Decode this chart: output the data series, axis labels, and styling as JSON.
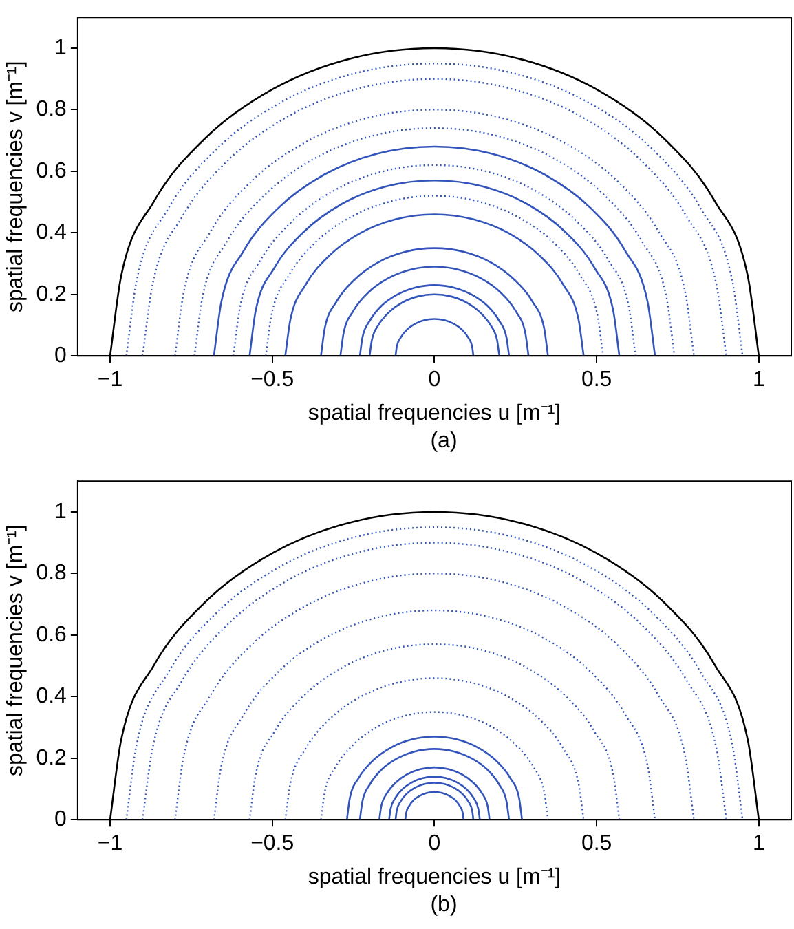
{
  "chart_data": [
    {
      "type": "line",
      "xlabel": "spatial frequencies u [m⁻¹]",
      "ylabel": "spatial frequencies v [m⁻¹]",
      "annotations": [
        "(a)"
      ],
      "xlim": [
        -1.1,
        1.1
      ],
      "ylim": [
        0,
        1.1
      ],
      "xticks": [
        -1,
        -0.5,
        0,
        0.5,
        1
      ],
      "yticks": [
        0,
        0.2,
        0.4,
        0.6,
        0.8,
        1
      ],
      "grid": false,
      "legend": false,
      "series": [
        {
          "color": "#000000",
          "line_style": "solid",
          "x": [
            -1,
            -0.966,
            -0.866,
            -0.707,
            -0.5,
            -0.259,
            0,
            0.259,
            0.5,
            0.707,
            0.866,
            0.966,
            1
          ],
          "values": [
            0,
            0.259,
            0.5,
            0.707,
            0.866,
            0.966,
            1,
            0.966,
            0.866,
            0.707,
            0.5,
            0.259,
            0
          ]
        },
        {
          "color": "#3355bb",
          "line_style": "solid",
          "x": [
            -0.12,
            -0.116,
            -0.104,
            -0.085,
            -0.06,
            -0.031,
            0,
            0.031,
            0.06,
            0.085,
            0.104,
            0.116,
            0.12
          ],
          "values": [
            0,
            0.031,
            0.06,
            0.085,
            0.104,
            0.116,
            0.12,
            0.116,
            0.104,
            0.085,
            0.06,
            0.031,
            0
          ]
        },
        {
          "color": "#3355bb",
          "line_style": "solid",
          "x": [
            -0.2,
            -0.193,
            -0.173,
            -0.141,
            -0.1,
            -0.052,
            0,
            0.052,
            0.1,
            0.141,
            0.173,
            0.193,
            0.2
          ],
          "values": [
            0,
            0.052,
            0.1,
            0.141,
            0.173,
            0.193,
            0.2,
            0.193,
            0.173,
            0.141,
            0.1,
            0.052,
            0
          ]
        },
        {
          "color": "#3355bb",
          "line_style": "solid",
          "x": [
            -0.23,
            -0.222,
            -0.199,
            -0.163,
            -0.115,
            -0.06,
            0,
            0.06,
            0.115,
            0.163,
            0.199,
            0.222,
            0.23
          ],
          "values": [
            0,
            0.06,
            0.115,
            0.163,
            0.199,
            0.222,
            0.23,
            0.222,
            0.199,
            0.163,
            0.115,
            0.06,
            0
          ]
        },
        {
          "color": "#3355bb",
          "line_style": "solid",
          "x": [
            -0.29,
            -0.28,
            -0.251,
            -0.205,
            -0.145,
            -0.075,
            0,
            0.075,
            0.145,
            0.205,
            0.251,
            0.28,
            0.29
          ],
          "values": [
            0,
            0.075,
            0.145,
            0.205,
            0.251,
            0.28,
            0.29,
            0.28,
            0.251,
            0.205,
            0.145,
            0.075,
            0
          ]
        },
        {
          "color": "#3355bb",
          "line_style": "solid",
          "x": [
            -0.35,
            -0.338,
            -0.303,
            -0.247,
            -0.175,
            -0.091,
            0,
            0.091,
            0.175,
            0.247,
            0.303,
            0.338,
            0.35
          ],
          "values": [
            0,
            0.091,
            0.175,
            0.247,
            0.303,
            0.338,
            0.35,
            0.338,
            0.303,
            0.247,
            0.175,
            0.091,
            0
          ]
        },
        {
          "color": "#3355bb",
          "line_style": "solid",
          "x": [
            -0.46,
            -0.444,
            -0.398,
            -0.325,
            -0.23,
            -0.119,
            0,
            0.119,
            0.23,
            0.325,
            0.398,
            0.444,
            0.46
          ],
          "values": [
            0,
            0.119,
            0.23,
            0.325,
            0.398,
            0.444,
            0.46,
            0.444,
            0.398,
            0.325,
            0.23,
            0.119,
            0
          ]
        },
        {
          "color": "#3355bb",
          "line_style": "dotted",
          "x": [
            -0.52,
            -0.502,
            -0.45,
            -0.368,
            -0.26,
            -0.135,
            0,
            0.135,
            0.26,
            0.368,
            0.45,
            0.502,
            0.52
          ],
          "values": [
            0,
            0.135,
            0.26,
            0.368,
            0.45,
            0.502,
            0.52,
            0.502,
            0.45,
            0.368,
            0.26,
            0.135,
            0
          ]
        },
        {
          "color": "#3355bb",
          "line_style": "solid",
          "x": [
            -0.57,
            -0.551,
            -0.494,
            -0.403,
            -0.285,
            -0.148,
            0,
            0.148,
            0.285,
            0.403,
            0.494,
            0.551,
            0.57
          ],
          "values": [
            0,
            0.148,
            0.285,
            0.403,
            0.494,
            0.551,
            0.57,
            0.551,
            0.494,
            0.403,
            0.285,
            0.148,
            0
          ]
        },
        {
          "color": "#3355bb",
          "line_style": "dotted",
          "x": [
            -0.62,
            -0.599,
            -0.537,
            -0.438,
            -0.31,
            -0.161,
            0,
            0.161,
            0.31,
            0.438,
            0.537,
            0.599,
            0.62
          ],
          "values": [
            0,
            0.161,
            0.31,
            0.438,
            0.537,
            0.599,
            0.62,
            0.599,
            0.537,
            0.438,
            0.31,
            0.161,
            0
          ]
        },
        {
          "color": "#3355bb",
          "line_style": "solid",
          "x": [
            -0.68,
            -0.657,
            -0.589,
            -0.481,
            -0.34,
            -0.176,
            0,
            0.176,
            0.34,
            0.481,
            0.589,
            0.657,
            0.68
          ],
          "values": [
            0,
            0.176,
            0.34,
            0.481,
            0.589,
            0.657,
            0.68,
            0.657,
            0.589,
            0.481,
            0.34,
            0.176,
            0
          ]
        },
        {
          "color": "#3355bb",
          "line_style": "dotted",
          "x": [
            -0.74,
            -0.715,
            -0.641,
            -0.523,
            -0.37,
            -0.192,
            0,
            0.192,
            0.37,
            0.523,
            0.641,
            0.715,
            0.74
          ],
          "values": [
            0,
            0.192,
            0.37,
            0.523,
            0.641,
            0.715,
            0.74,
            0.715,
            0.641,
            0.523,
            0.37,
            0.192,
            0
          ]
        },
        {
          "color": "#3355bb",
          "line_style": "dotted",
          "x": [
            -0.8,
            -0.773,
            -0.693,
            -0.566,
            -0.4,
            -0.207,
            0,
            0.207,
            0.4,
            0.566,
            0.693,
            0.773,
            0.8
          ],
          "values": [
            0,
            0.207,
            0.4,
            0.566,
            0.693,
            0.773,
            0.8,
            0.773,
            0.693,
            0.566,
            0.4,
            0.207,
            0
          ]
        },
        {
          "color": "#3355bb",
          "line_style": "dotted",
          "x": [
            -0.9,
            -0.869,
            -0.779,
            -0.636,
            -0.45,
            -0.233,
            0,
            0.233,
            0.45,
            0.636,
            0.779,
            0.869,
            0.9
          ],
          "values": [
            0,
            0.233,
            0.45,
            0.636,
            0.779,
            0.869,
            0.9,
            0.869,
            0.779,
            0.636,
            0.45,
            0.233,
            0
          ]
        },
        {
          "color": "#3355bb",
          "line_style": "dotted",
          "x": [
            -0.95,
            -0.918,
            -0.823,
            -0.672,
            -0.475,
            -0.246,
            0,
            0.246,
            0.475,
            0.672,
            0.823,
            0.918,
            0.95
          ],
          "values": [
            0,
            0.246,
            0.475,
            0.672,
            0.823,
            0.918,
            0.95,
            0.918,
            0.823,
            0.672,
            0.475,
            0.246,
            0
          ]
        }
      ]
    },
    {
      "type": "line",
      "xlabel": "spatial frequencies u [m⁻¹]",
      "ylabel": "spatial frequencies v [m⁻¹]",
      "annotations": [
        "(b)"
      ],
      "xlim": [
        -1.1,
        1.1
      ],
      "ylim": [
        0,
        1.1
      ],
      "xticks": [
        -1,
        -0.5,
        0,
        0.5,
        1
      ],
      "yticks": [
        0,
        0.2,
        0.4,
        0.6,
        0.8,
        1
      ],
      "grid": false,
      "legend": false,
      "series": [
        {
          "color": "#000000",
          "line_style": "solid",
          "x": [
            -1,
            -0.966,
            -0.866,
            -0.707,
            -0.5,
            -0.259,
            0,
            0.259,
            0.5,
            0.707,
            0.866,
            0.966,
            1
          ],
          "values": [
            0,
            0.259,
            0.5,
            0.707,
            0.866,
            0.966,
            1,
            0.966,
            0.866,
            0.707,
            0.5,
            0.259,
            0
          ]
        },
        {
          "color": "#3355bb",
          "line_style": "solid",
          "x": [
            -0.09,
            -0.087,
            -0.078,
            -0.064,
            -0.045,
            -0.023,
            0,
            0.023,
            0.045,
            0.064,
            0.078,
            0.087,
            0.09
          ],
          "values": [
            0,
            0.023,
            0.045,
            0.064,
            0.078,
            0.087,
            0.09,
            0.087,
            0.078,
            0.064,
            0.045,
            0.023,
            0
          ]
        },
        {
          "color": "#3355bb",
          "line_style": "solid",
          "x": [
            -0.12,
            -0.116,
            -0.104,
            -0.085,
            -0.06,
            -0.031,
            0,
            0.031,
            0.06,
            0.085,
            0.104,
            0.116,
            0.12
          ],
          "values": [
            0,
            0.031,
            0.06,
            0.085,
            0.104,
            0.116,
            0.12,
            0.116,
            0.104,
            0.085,
            0.06,
            0.031,
            0
          ]
        },
        {
          "color": "#3355bb",
          "line_style": "solid",
          "x": [
            -0.14,
            -0.135,
            -0.121,
            -0.099,
            -0.07,
            -0.036,
            0,
            0.036,
            0.07,
            0.099,
            0.121,
            0.135,
            0.14
          ],
          "values": [
            0,
            0.036,
            0.07,
            0.099,
            0.121,
            0.135,
            0.14,
            0.135,
            0.121,
            0.099,
            0.07,
            0.036,
            0
          ]
        },
        {
          "color": "#3355bb",
          "line_style": "solid",
          "x": [
            -0.17,
            -0.164,
            -0.147,
            -0.12,
            -0.085,
            -0.044,
            0,
            0.044,
            0.085,
            0.12,
            0.147,
            0.164,
            0.17
          ],
          "values": [
            0,
            0.044,
            0.085,
            0.12,
            0.147,
            0.164,
            0.17,
            0.164,
            0.147,
            0.12,
            0.085,
            0.044,
            0
          ]
        },
        {
          "color": "#3355bb",
          "line_style": "solid",
          "x": [
            -0.23,
            -0.222,
            -0.199,
            -0.163,
            -0.115,
            -0.06,
            0,
            0.06,
            0.115,
            0.163,
            0.199,
            0.222,
            0.23
          ],
          "values": [
            0,
            0.06,
            0.115,
            0.163,
            0.199,
            0.222,
            0.23,
            0.222,
            0.199,
            0.163,
            0.115,
            0.06,
            0
          ]
        },
        {
          "color": "#3355bb",
          "line_style": "solid",
          "x": [
            -0.27,
            -0.261,
            -0.234,
            -0.191,
            -0.135,
            -0.07,
            0,
            0.07,
            0.135,
            0.191,
            0.234,
            0.261,
            0.27
          ],
          "values": [
            0,
            0.07,
            0.135,
            0.191,
            0.234,
            0.261,
            0.27,
            0.261,
            0.234,
            0.191,
            0.135,
            0.07,
            0
          ]
        },
        {
          "color": "#3355bb",
          "line_style": "dotted",
          "x": [
            -0.35,
            -0.338,
            -0.303,
            -0.247,
            -0.175,
            -0.091,
            0,
            0.091,
            0.175,
            0.247,
            0.303,
            0.338,
            0.35
          ],
          "values": [
            0,
            0.091,
            0.175,
            0.247,
            0.303,
            0.338,
            0.35,
            0.338,
            0.303,
            0.247,
            0.175,
            0.091,
            0
          ]
        },
        {
          "color": "#3355bb",
          "line_style": "dotted",
          "x": [
            -0.46,
            -0.444,
            -0.398,
            -0.325,
            -0.23,
            -0.119,
            0,
            0.119,
            0.23,
            0.325,
            0.398,
            0.444,
            0.46
          ],
          "values": [
            0,
            0.119,
            0.23,
            0.325,
            0.398,
            0.444,
            0.46,
            0.444,
            0.398,
            0.325,
            0.23,
            0.119,
            0
          ]
        },
        {
          "color": "#3355bb",
          "line_style": "dotted",
          "x": [
            -0.57,
            -0.551,
            -0.494,
            -0.403,
            -0.285,
            -0.148,
            0,
            0.148,
            0.285,
            0.403,
            0.494,
            0.551,
            0.57
          ],
          "values": [
            0,
            0.148,
            0.285,
            0.403,
            0.494,
            0.551,
            0.57,
            0.551,
            0.494,
            0.403,
            0.285,
            0.148,
            0
          ]
        },
        {
          "color": "#3355bb",
          "line_style": "dotted",
          "x": [
            -0.68,
            -0.657,
            -0.589,
            -0.481,
            -0.34,
            -0.176,
            0,
            0.176,
            0.34,
            0.481,
            0.589,
            0.657,
            0.68
          ],
          "values": [
            0,
            0.176,
            0.34,
            0.481,
            0.589,
            0.657,
            0.68,
            0.657,
            0.589,
            0.481,
            0.34,
            0.176,
            0
          ]
        },
        {
          "color": "#3355bb",
          "line_style": "dotted",
          "x": [
            -0.8,
            -0.773,
            -0.693,
            -0.566,
            -0.4,
            -0.207,
            0,
            0.207,
            0.4,
            0.566,
            0.693,
            0.773,
            0.8
          ],
          "values": [
            0,
            0.207,
            0.4,
            0.566,
            0.693,
            0.773,
            0.8,
            0.773,
            0.693,
            0.566,
            0.4,
            0.207,
            0
          ]
        },
        {
          "color": "#3355bb",
          "line_style": "dotted",
          "x": [
            -0.9,
            -0.869,
            -0.779,
            -0.636,
            -0.45,
            -0.233,
            0,
            0.233,
            0.45,
            0.636,
            0.779,
            0.869,
            0.9
          ],
          "values": [
            0,
            0.233,
            0.45,
            0.636,
            0.779,
            0.869,
            0.9,
            0.869,
            0.779,
            0.636,
            0.45,
            0.233,
            0
          ]
        },
        {
          "color": "#3355bb",
          "line_style": "dotted",
          "x": [
            -0.95,
            -0.918,
            -0.823,
            -0.672,
            -0.475,
            -0.246,
            0,
            0.246,
            0.475,
            0.672,
            0.823,
            0.918,
            0.95
          ],
          "values": [
            0,
            0.246,
            0.475,
            0.672,
            0.823,
            0.918,
            0.95,
            0.918,
            0.823,
            0.672,
            0.475,
            0.246,
            0
          ]
        }
      ]
    }
  ]
}
